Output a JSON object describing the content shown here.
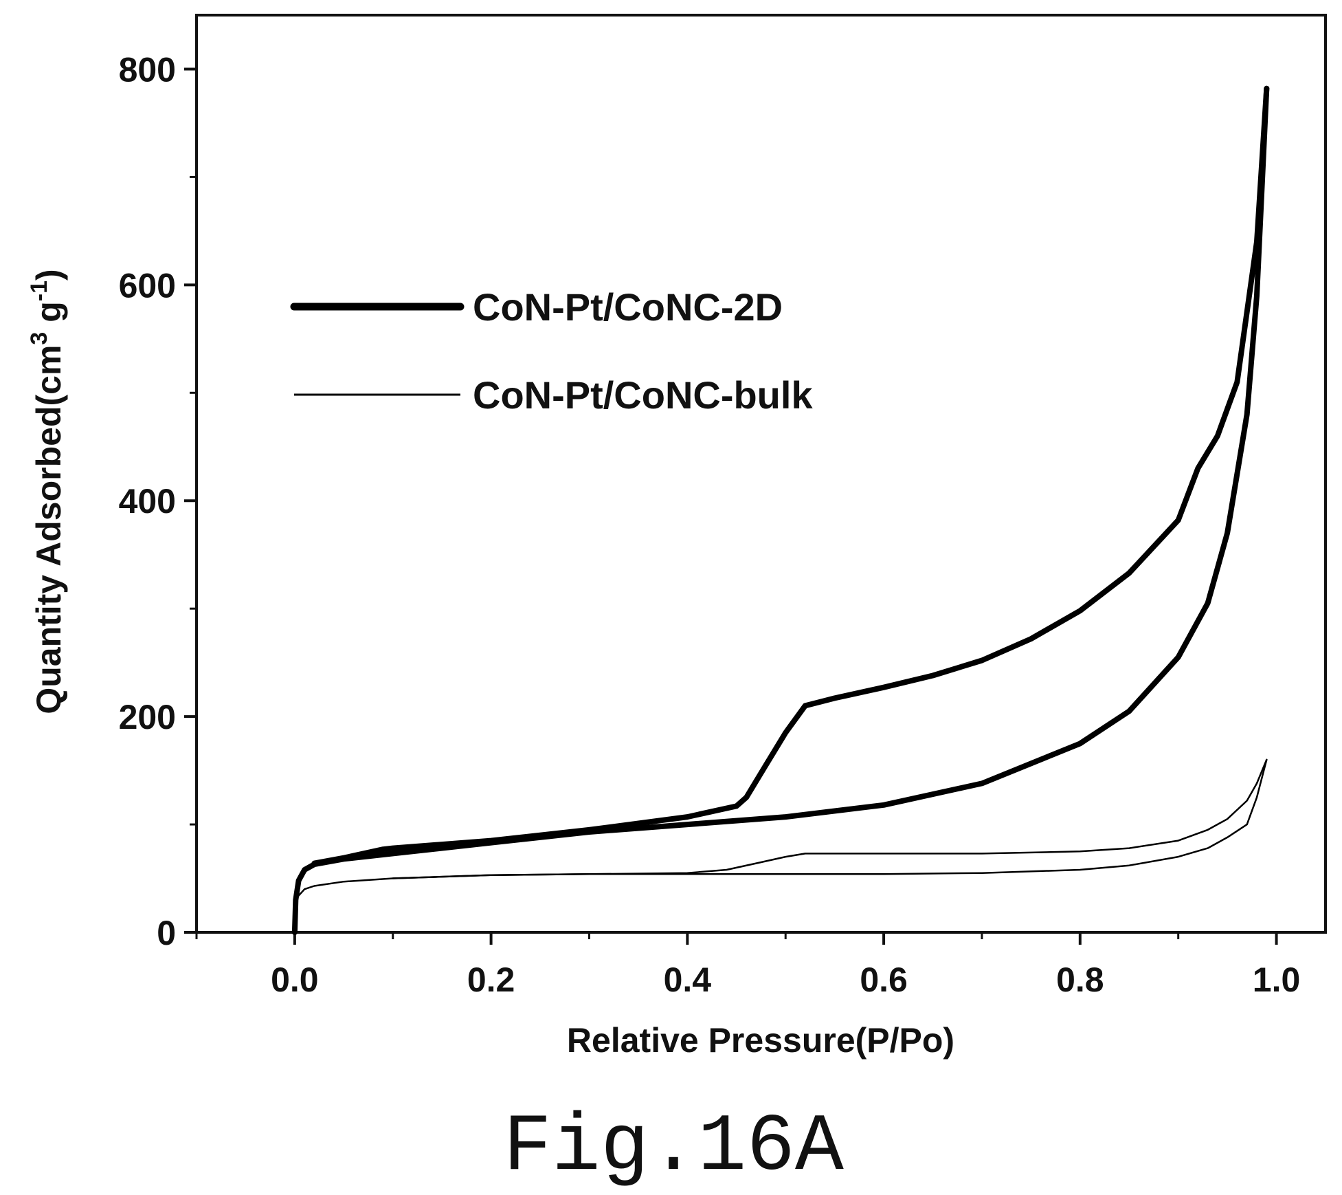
{
  "figure_caption": "Fig.16A",
  "chart_data": {
    "type": "line",
    "xlabel": "Relative Pressure(P/Po)",
    "ylabel_parts": [
      "Quantity Adsorbed(cm",
      "3",
      " g",
      "-1",
      ")"
    ],
    "xlim": [
      -0.1,
      1.05
    ],
    "ylim": [
      0,
      850
    ],
    "x_ticks": [
      0.0,
      0.2,
      0.4,
      0.6,
      0.8,
      1.0
    ],
    "x_tick_labels": [
      "0.0",
      "0.2",
      "0.4",
      "0.6",
      "0.8",
      "1.0"
    ],
    "x_minor_ticks": [
      -0.1,
      0.1,
      0.3,
      0.5,
      0.7,
      0.9
    ],
    "y_ticks": [
      0,
      200,
      400,
      600,
      800
    ],
    "y_tick_labels": [
      "0",
      "200",
      "400",
      "600",
      "800"
    ],
    "y_minor_ticks": [
      100,
      300,
      500,
      700
    ],
    "grid": false,
    "legend_position": "upper-left",
    "series": [
      {
        "name": "CoN-Pt/CoNC-2D",
        "color": "#000000",
        "line_weight": "thick",
        "adsorption": {
          "x": [
            0.0,
            0.001,
            0.004,
            0.01,
            0.02,
            0.05,
            0.1,
            0.2,
            0.3,
            0.4,
            0.5,
            0.6,
            0.7,
            0.8,
            0.85,
            0.9,
            0.93,
            0.95,
            0.97,
            0.98,
            0.99
          ],
          "y": [
            0,
            30,
            48,
            58,
            63,
            68,
            73,
            83,
            93,
            100,
            107,
            118,
            138,
            175,
            205,
            255,
            305,
            370,
            480,
            590,
            782
          ]
        },
        "desorption": {
          "x": [
            0.99,
            0.98,
            0.96,
            0.94,
            0.92,
            0.9,
            0.85,
            0.8,
            0.75,
            0.7,
            0.65,
            0.6,
            0.55,
            0.52,
            0.5,
            0.48,
            0.46,
            0.45,
            0.4,
            0.3,
            0.2,
            0.1,
            0.09,
            0.05,
            0.02
          ],
          "y": [
            782,
            640,
            510,
            460,
            430,
            382,
            333,
            298,
            272,
            252,
            238,
            227,
            217,
            210,
            185,
            155,
            125,
            117,
            107,
            95,
            85,
            78,
            77,
            69,
            64
          ]
        }
      },
      {
        "name": "CoN-Pt/CoNC-bulk",
        "color": "#000000",
        "line_weight": "thin",
        "adsorption": {
          "x": [
            0.0,
            0.001,
            0.003,
            0.01,
            0.02,
            0.05,
            0.1,
            0.2,
            0.3,
            0.4,
            0.5,
            0.6,
            0.7,
            0.8,
            0.85,
            0.9,
            0.93,
            0.95,
            0.97,
            0.98,
            0.99
          ],
          "y": [
            0,
            25,
            33,
            40,
            43,
            47,
            50,
            53,
            54,
            54,
            54,
            54,
            55,
            58,
            62,
            70,
            78,
            88,
            100,
            125,
            160
          ]
        },
        "desorption": {
          "x": [
            0.99,
            0.98,
            0.97,
            0.95,
            0.93,
            0.9,
            0.85,
            0.8,
            0.7,
            0.6,
            0.55,
            0.52,
            0.5,
            0.47,
            0.44,
            0.4,
            0.3,
            0.2,
            0.1
          ],
          "y": [
            160,
            138,
            122,
            105,
            95,
            85,
            78,
            75,
            73,
            73,
            73,
            73,
            70,
            64,
            58,
            55,
            54,
            53,
            50
          ]
        }
      }
    ]
  }
}
